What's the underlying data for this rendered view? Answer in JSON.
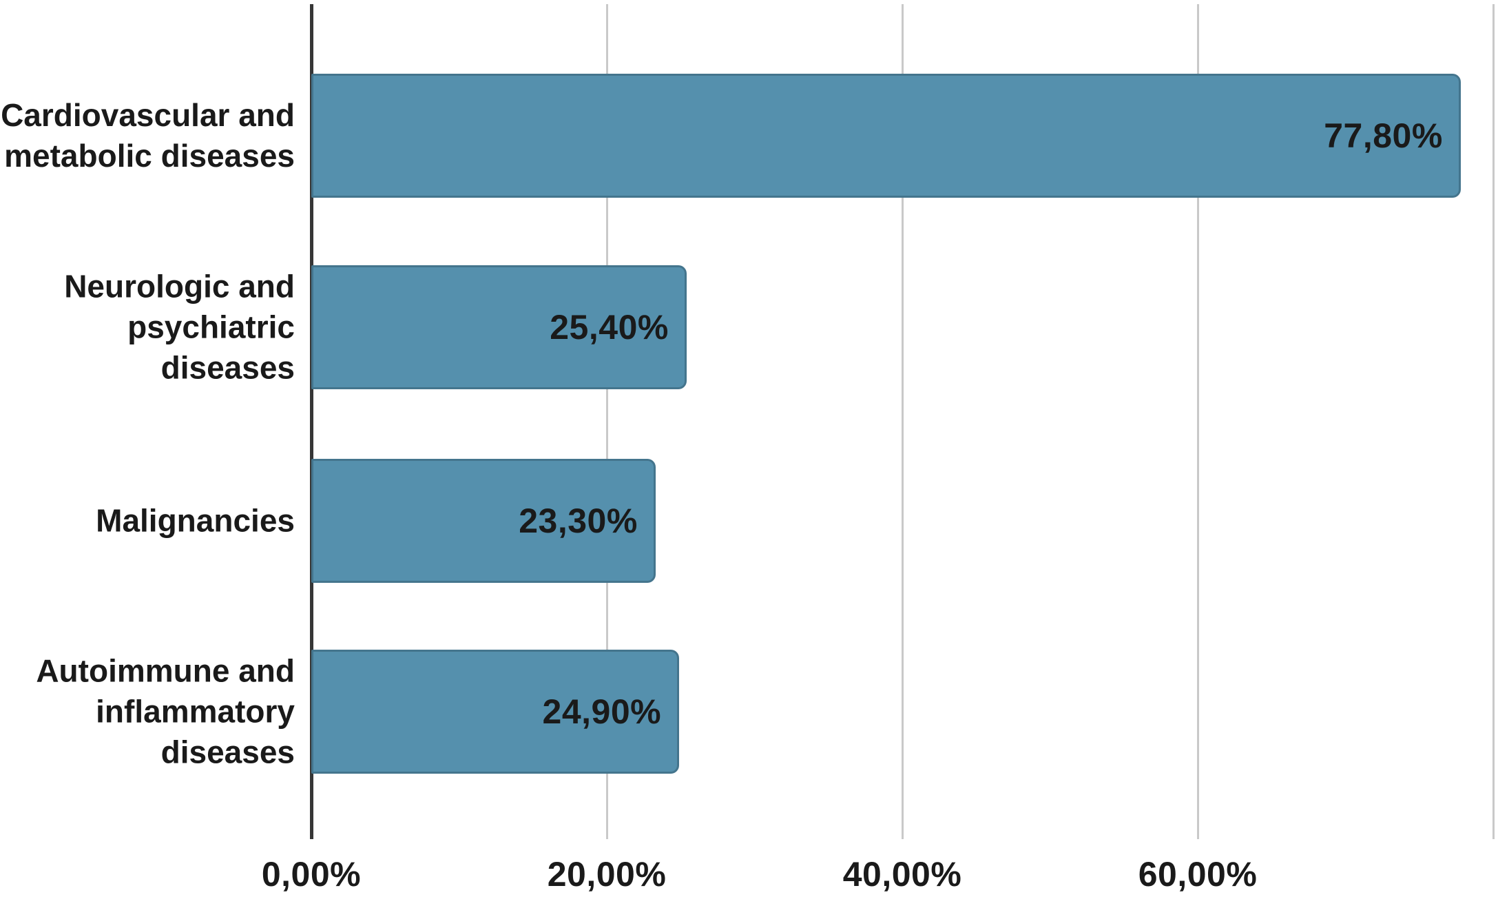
{
  "chart_data": {
    "type": "bar",
    "orientation": "horizontal",
    "categories": [
      "Cardiovascular and metabolic diseases",
      "Neurologic and psychiatric diseases",
      "Malignancies",
      "Autoimmune and inflammatory diseases"
    ],
    "category_line_breaks": [
      [
        "Cardiovascular and",
        "metabolic diseases"
      ],
      [
        "Neurologic and",
        "psychiatric",
        "diseases"
      ],
      [
        "Malignancies"
      ],
      [
        "Autoimmune and",
        "inflammatory",
        "diseases"
      ]
    ],
    "values": [
      77.8,
      25.4,
      23.3,
      24.9
    ],
    "value_labels": [
      "77,80%",
      "25,40%",
      "23,30%",
      "24,90%"
    ],
    "x_axis": {
      "ticks": [
        0,
        20,
        40,
        60,
        80
      ],
      "tick_labels": [
        "0,00%",
        "20,00%",
        "40,00%",
        "60,00%",
        ""
      ],
      "range": [
        0,
        80.3
      ],
      "grid": true
    },
    "number_format": "decimal-comma",
    "legend": "none",
    "colors": {
      "bar_fill": "#5590ad",
      "bar_border": "#44758d",
      "gridline": "#c9c9c9",
      "axis_line": "#363636",
      "text": "#1a1a1a",
      "background": "#ffffff"
    }
  }
}
